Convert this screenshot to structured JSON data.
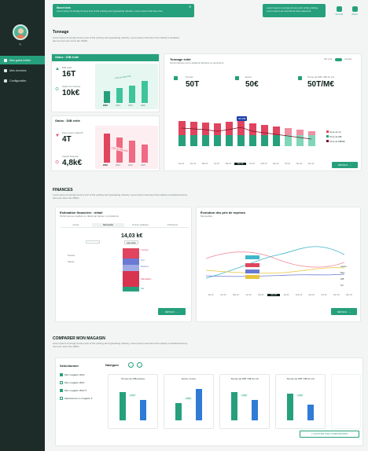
{
  "sidebar": {
    "items": [
      {
        "label": "Mes gains évités",
        "active": true
      },
      {
        "label": "Mes données",
        "active": false
      },
      {
        "label": "Configuration",
        "active": false
      }
    ]
  },
  "notifications": {
    "left": {
      "title": "Nouvel avis",
      "text": "Lorem ipsum is simply dummy text of the printing and typesetting industry. Lorem ipsum has been the"
    },
    "right": {
      "text": "Lorem ipsum is simply dummy text of the printing. Lorem ipsum de <b>Journal de bord</b> paiement"
    }
  },
  "header": {
    "journal": "Journal",
    "alerte": "Alerte"
  },
  "tonnage": {
    "title": "Tonnage",
    "desc": "Lorem ipsum is simply dummy text of the printing and typesetting industry. Lorem Ipsum has been the industry's standard dummy text ever since the 1500s.",
    "gains1": {
      "head": "Gains : DIB évité",
      "dib_label": "DIB évité",
      "dib_value": "16T",
      "euros_label": "Gains sur l'année",
      "euros_value": "10k€",
      "years": [
        "2022",
        "2023",
        "2024",
        "2025"
      ],
      "bubble": "+10% de DIB évité"
    },
    "gains2": {
      "head": "Gains : DIB évité",
      "t_label": "Zoom avec l'objectif",
      "t_value": "4T",
      "e_label": "Impact financier",
      "e_value": "4,8k€",
      "years": [
        "2022",
        "2023",
        "2024",
        "2025"
      ],
      "bubble": "+15% de DIB évité"
    },
    "evite": {
      "title": "Tonnage évité",
      "sub": "Performances sur le détail de facteurs et prévisions",
      "toggle_left": "Par mois",
      "toggle_right": "Cumulé",
      "kpis": [
        {
          "label": "Tonnes",
          "value": "50T"
        },
        {
          "label": "Euros",
          "value": "50€"
        },
        {
          "label": "Tonne de DIB / M€ de CA",
          "value": "50T/M€"
        }
      ],
      "months": [
        "Jan 22",
        "Fév 22",
        "Mar 22",
        "Avr 22",
        "Mai 22",
        "Juin 22",
        "Juil 22",
        "Août 22",
        "Sep 22",
        "Oct 22",
        "Nov 22",
        "Déc 22"
      ],
      "tooltip": "50T/M€",
      "legend": [
        "Tonne de CA",
        "Tonne de DIB",
        "Tonne de DIB/M€"
      ],
      "details": "DÉTAILS"
    }
  },
  "finances": {
    "title": "FINANCES",
    "desc": "Lorem ipsum is simply dummy text of the printing and typesetting industry. Lorem Ipsum has been the industry's standard dummy text ever since the 1500s.",
    "estimation": {
      "title": "Estimation financière : détail",
      "sub": "Performances réalisés en détail par facteur et prévisions",
      "tabs": [
        "Année",
        "Mensuelle",
        "Tonnes réalisées",
        "Prévisions"
      ],
      "value": "14,03 k€",
      "select": "Mai 2022",
      "rows": [
        "Nombre",
        "Valeurs"
      ],
      "details": "DÉTAILS",
      "seg_labels": [
        "Contenu",
        "Fixe",
        "Matières",
        "Valorisation",
        "Net"
      ]
    },
    "evolution": {
      "title": "Évolution des prix de reprises",
      "sub": "Mensuelles",
      "months": [
        "Jan 22",
        "Fév 22",
        "Mar 22",
        "Avr 22",
        "Mai 22",
        "Juin 22",
        "Juil 22",
        "Août 22",
        "Sep 22",
        "Oct 22",
        "Nov 22",
        "Déc 22"
      ],
      "details": "DÉTAILS",
      "legend": [
        "Carton",
        "Bois",
        "DIB",
        "Fer"
      ]
    }
  },
  "comparer": {
    "title": "COMPARER MON MAGASIN",
    "desc": "Lorem ipsum is simply dummy text of the printing and typesetting industry. Lorem Ipsum has been the industry's standard dummy text ever since the 1500s.",
    "select_label": "Sélectionner",
    "stores": [
      {
        "label": "Mon magasin 2022",
        "on": true
      },
      {
        "label": "Mon magasin 2021",
        "on": false
      },
      {
        "label": "Mon magasin 2022 ▾",
        "on": true
      },
      {
        "label": "Sélectionner un magasin ▾",
        "on": false
      }
    ],
    "navigate": "Naviguer",
    "cards": [
      {
        "title": "Tonnes de DIB évitées",
        "pct": "+21%"
      },
      {
        "title": "Euros / tonne",
        "pct": "+28%"
      },
      {
        "title": "Tonnes de DIB / M€ de CA",
        "pct": "+10%"
      },
      {
        "title": "Tonnes de DIB / M€ de CA",
        "pct": "+10%"
      }
    ],
    "add": "+ AJOUTER UNE COMPARAISON"
  }
}
